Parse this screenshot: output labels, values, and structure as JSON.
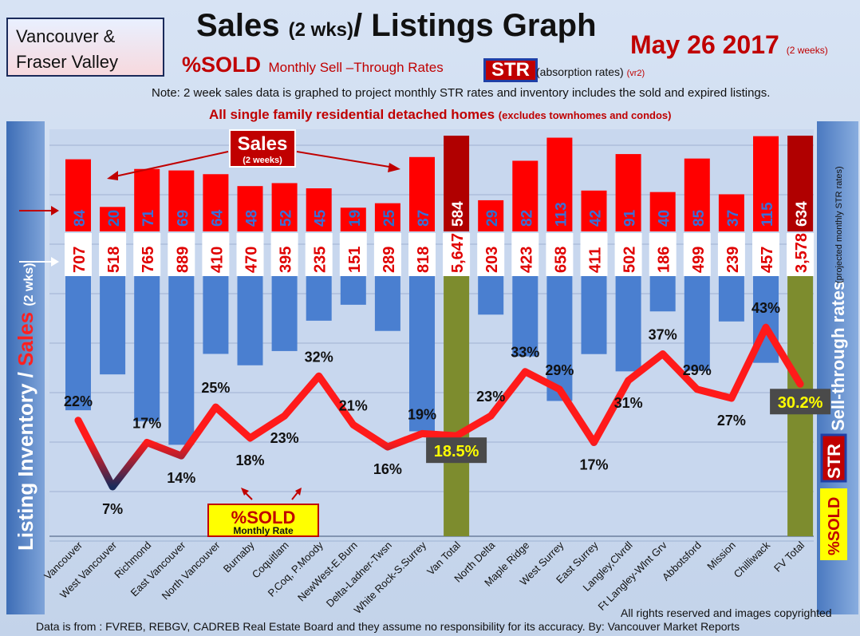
{
  "header": {
    "region": "Vancouver & Fraser Valley",
    "title_main": "Sales",
    "title_period": "(2 wks)",
    "title_rest": "/ Listings Graph",
    "date": "May 26 2017",
    "date_note": "(2 weeks)",
    "sold_label": "%SOLD",
    "subtitle": "Monthly Sell –Through Rates",
    "str_badge": "STR",
    "str_desc": "(absorption rates)",
    "version": "(vr2)",
    "note": "Note: 2 week sales data is graphed to project monthly STR rates and inventory includes the sold and expired listings.",
    "sfr": "All single family residential detached homes",
    "sfr_note": "(excludes townhomes and condos)"
  },
  "left_axis": {
    "inventory": "Listing Inventory /",
    "sales": "Sales",
    "period": "(2 wks)"
  },
  "right_axis": {
    "str_rates": "Sell-through rates",
    "projected": "(projected monthly STR rates)",
    "str_badge": "STR",
    "sold_badge": "%SOLD"
  },
  "callouts": {
    "sales": "Sales",
    "sales_period": "(2 weeks)",
    "sold": "%SOLD",
    "sold_rate": "Monthly Rate"
  },
  "footer": {
    "source": "Data is from : FVREB, REBGV, CADREB Real Estate Board and they assume no responsibility  for its accuracy. By: Vancouver Market Reports",
    "rights": "All rights reserved and  images copyrighted"
  },
  "colors": {
    "sales_bar": "#ff0000",
    "total_sales_bar": "#b00000",
    "inventory_bar": "#4a7fd0",
    "total_bar": "#7d8c2e",
    "str_line": "#ff0000",
    "str_line_low": "#1a2a5a"
  },
  "chart_data": {
    "type": "bar",
    "categories": [
      "Vancouver",
      "West Vancouver",
      "Richmond",
      "East Vancouver",
      "North Vancouver",
      "Burnaby",
      "Coquitlam",
      "P.Coq, P.Moody",
      "NewWest-E.Burn",
      "Delta-Ladner-Twsn",
      "White Rock-S.Surrey",
      "Van Total",
      "North Delta",
      "Maple Ridge",
      "West Surrey",
      "East Surrey",
      "Langley,Clvrdl",
      "Ft Langley-Wlnt Grv",
      "Abbotsford",
      "Mission",
      "Chilliwack",
      "FV Total"
    ],
    "series": [
      {
        "name": "Sales",
        "values": [
          84,
          20,
          71,
          69,
          64,
          48,
          52,
          45,
          19,
          25,
          87,
          584,
          29,
          82,
          113,
          42,
          91,
          40,
          85,
          37,
          115,
          634
        ]
      },
      {
        "name": "Listing Inventory",
        "values": [
          707,
          518,
          765,
          889,
          410,
          470,
          395,
          235,
          151,
          289,
          818,
          5647,
          203,
          423,
          658,
          411,
          502,
          186,
          499,
          239,
          457,
          3578
        ]
      },
      {
        "name": "STR",
        "values": [
          22,
          7,
          17,
          14,
          25,
          18,
          23,
          32,
          21,
          16,
          19,
          18.5,
          23,
          33,
          29,
          17,
          31,
          37,
          29,
          27,
          43,
          30.2
        ]
      }
    ],
    "labels": {
      "sales": [
        "84",
        "20",
        "71",
        "69",
        "64",
        "48",
        "52",
        "45",
        "19",
        "25",
        "87",
        "584",
        "29",
        "82",
        "113",
        "42",
        "91",
        "40",
        "85",
        "37",
        "115",
        "634"
      ],
      "inventory": [
        "707",
        "518",
        "765",
        "889",
        "410",
        "470",
        "395",
        "235",
        "151",
        "289",
        "818",
        "5,647",
        "203",
        "423",
        "658",
        "411",
        "502",
        "186",
        "499",
        "239",
        "457",
        "3,578"
      ],
      "str": [
        "22%",
        "7%",
        "17%",
        "14%",
        "25%",
        "18%",
        "23%",
        "32%",
        "21%",
        "16%",
        "19%",
        "18.5%",
        "23%",
        "33%",
        "29%",
        "17%",
        "31%",
        "37%",
        "29%",
        "27%",
        "43%",
        "30.2%"
      ]
    },
    "totals": [
      "Van Total",
      "FV Total"
    ]
  }
}
